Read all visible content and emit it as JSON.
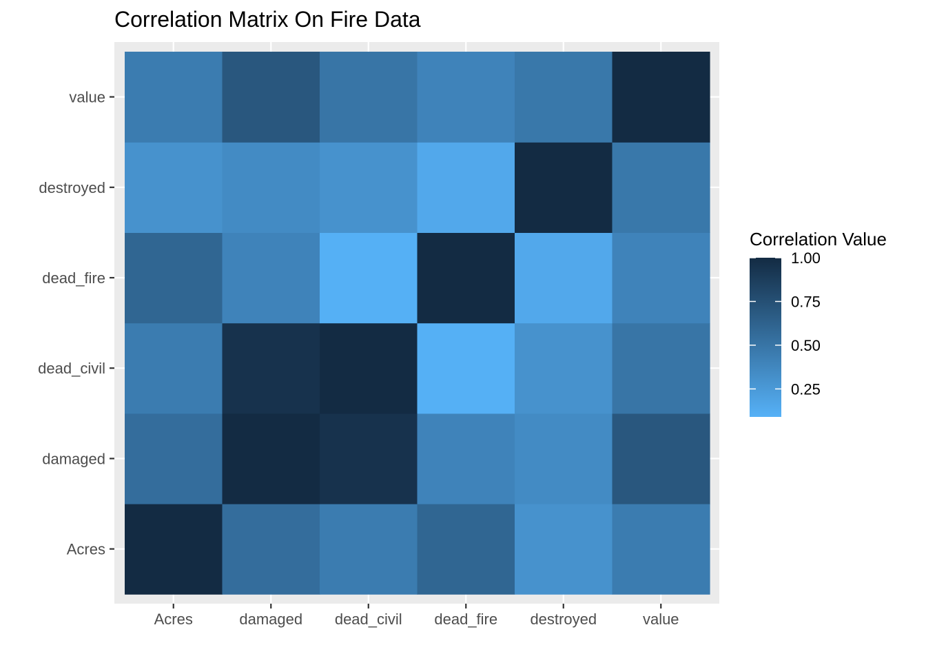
{
  "chart_data": {
    "type": "heatmap",
    "title": "Correlation Matrix On Fire Data",
    "xlabel": "",
    "ylabel": "",
    "x_categories": [
      "Acres",
      "damaged",
      "dead_civil",
      "dead_fire",
      "destroyed",
      "value"
    ],
    "y_categories": [
      "Acres",
      "damaged",
      "dead_civil",
      "dead_fire",
      "destroyed",
      "value"
    ],
    "values": [
      [
        1.0,
        0.55,
        0.45,
        0.6,
        0.3,
        0.45
      ],
      [
        0.55,
        1.0,
        0.95,
        0.4,
        0.35,
        0.7
      ],
      [
        0.45,
        0.95,
        1.0,
        0.1,
        0.3,
        0.5
      ],
      [
        0.6,
        0.4,
        0.1,
        1.0,
        0.15,
        0.4
      ],
      [
        0.3,
        0.35,
        0.3,
        0.15,
        1.0,
        0.48
      ],
      [
        0.45,
        0.7,
        0.5,
        0.4,
        0.48,
        1.0
      ]
    ],
    "legend": {
      "title": "Correlation Value",
      "position": "right",
      "breaks": [
        1.0,
        0.75,
        0.5,
        0.25
      ],
      "break_labels": [
        "1.00",
        "0.75",
        "0.50",
        "0.25"
      ],
      "min": 0.09,
      "max": 1.0
    },
    "colors": {
      "low": "#56B1F7",
      "high": "#132B43",
      "panel_background": "#EBEBEB",
      "grid": "#FFFFFF",
      "axis_text": "#4D4D4D",
      "tick": "#333333"
    },
    "grid": true
  }
}
